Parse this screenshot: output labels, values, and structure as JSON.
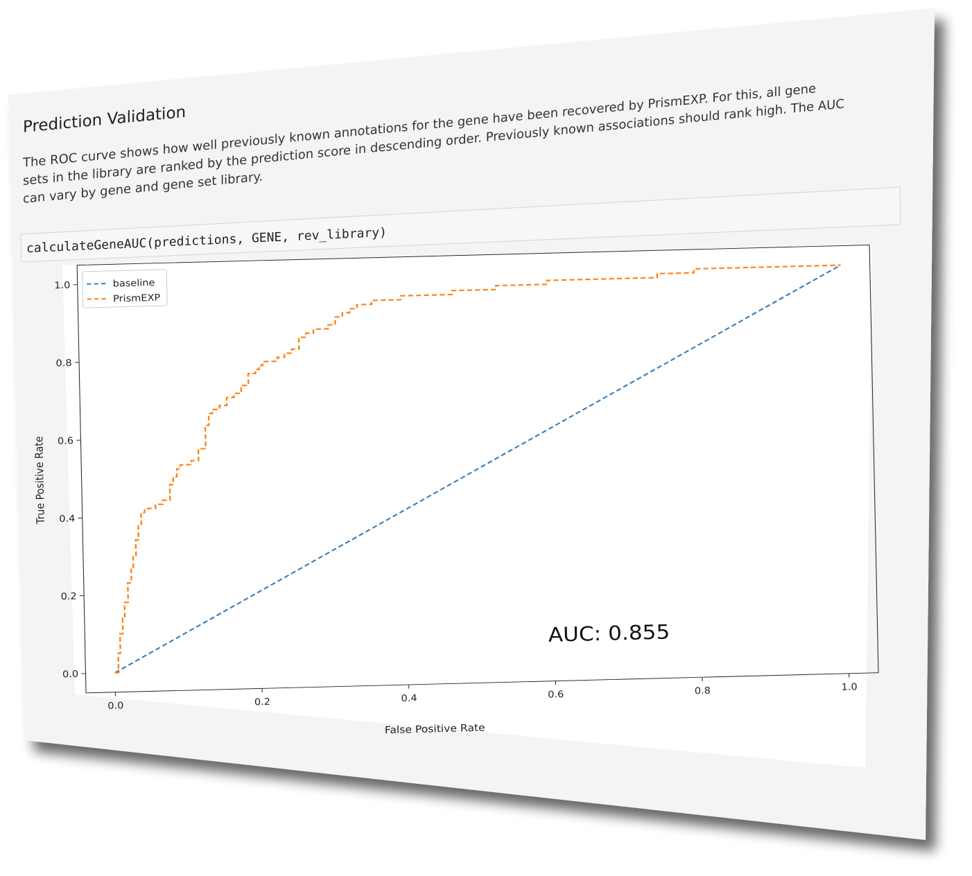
{
  "section": {
    "title": "Prediction Validation",
    "paragraph_lines": [
      "The ROC curve shows how well previously known annotations for the gene have been recovered by PrismEXP. For this, all gene",
      "sets in the library are ranked by the prediction score in descending order. Previously known associations should rank high. The AUC",
      "can vary by gene and gene set library."
    ]
  },
  "code": {
    "text": "calculateGeneAUC(predictions, GENE, rev_library)"
  },
  "colors": {
    "baseline": "#3a7cb9",
    "prismexp": "#ff7f0e",
    "card_bg": "#f4f4f4"
  },
  "chart_data": {
    "type": "line",
    "xlabel": "False Positive Rate",
    "ylabel": "True Positive Rate",
    "xlim": [
      -0.04,
      1.04
    ],
    "ylim": [
      -0.05,
      1.05
    ],
    "xticks": [
      "0.0",
      "0.2",
      "0.4",
      "0.6",
      "0.8",
      "1.0"
    ],
    "yticks": [
      "0.0",
      "0.2",
      "0.4",
      "0.6",
      "0.8",
      "1.0"
    ],
    "legend_position": "top-left",
    "annotation": "AUC: 0.855",
    "series": [
      {
        "name": "baseline",
        "style": "dashed",
        "x": [
          0.0,
          1.0
        ],
        "y": [
          0.0,
          1.0
        ]
      },
      {
        "name": "PrismEXP",
        "style": "dashed",
        "x": [
          0.0,
          0.005,
          0.008,
          0.012,
          0.015,
          0.02,
          0.025,
          0.028,
          0.032,
          0.036,
          0.04,
          0.045,
          0.05,
          0.055,
          0.06,
          0.07,
          0.08,
          0.085,
          0.09,
          0.095,
          0.1,
          0.11,
          0.12,
          0.13,
          0.135,
          0.14,
          0.145,
          0.15,
          0.16,
          0.17,
          0.175,
          0.18,
          0.19,
          0.2,
          0.205,
          0.21,
          0.215,
          0.22,
          0.23,
          0.24,
          0.25,
          0.26,
          0.27,
          0.28,
          0.29,
          0.3,
          0.31,
          0.32,
          0.33,
          0.34,
          0.35,
          0.36,
          0.37,
          0.38,
          0.4,
          0.43,
          0.45,
          0.47,
          0.5,
          0.53,
          0.56,
          0.6,
          0.65,
          0.7,
          0.73,
          0.75,
          0.77,
          0.8,
          0.85,
          0.9,
          0.95,
          1.0
        ],
        "y": [
          0.0,
          0.05,
          0.1,
          0.14,
          0.18,
          0.23,
          0.27,
          0.3,
          0.34,
          0.38,
          0.41,
          0.42,
          0.42,
          0.42,
          0.43,
          0.44,
          0.48,
          0.5,
          0.52,
          0.53,
          0.53,
          0.54,
          0.57,
          0.63,
          0.66,
          0.67,
          0.67,
          0.68,
          0.7,
          0.71,
          0.71,
          0.73,
          0.76,
          0.77,
          0.78,
          0.79,
          0.79,
          0.79,
          0.8,
          0.81,
          0.82,
          0.85,
          0.86,
          0.87,
          0.87,
          0.88,
          0.9,
          0.91,
          0.92,
          0.93,
          0.93,
          0.94,
          0.94,
          0.94,
          0.95,
          0.95,
          0.95,
          0.96,
          0.96,
          0.97,
          0.97,
          0.98,
          0.98,
          0.98,
          0.98,
          0.99,
          0.99,
          1.0,
          1.0,
          1.0,
          1.0,
          1.0
        ]
      }
    ]
  }
}
